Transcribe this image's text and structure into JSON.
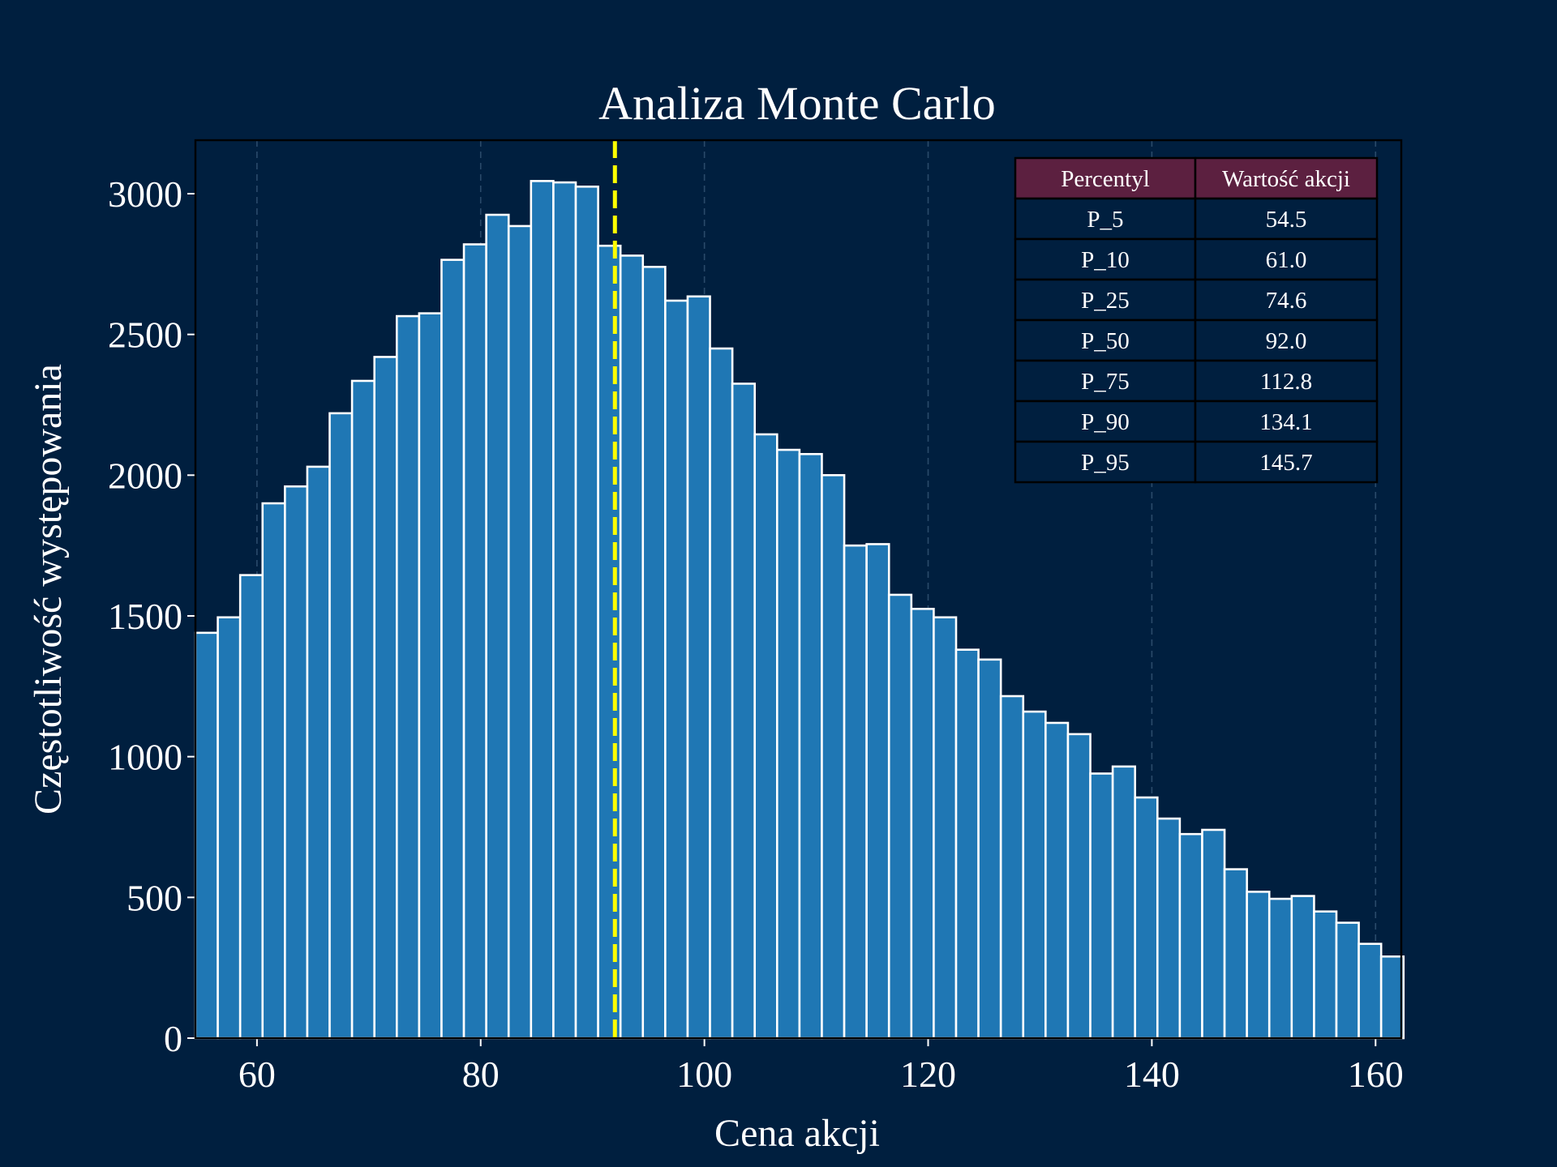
{
  "chart_data": {
    "type": "bar",
    "title": "Analiza Monte Carlo",
    "xlabel": "Cena akcji",
    "ylabel": "Częstotliwość występowania",
    "xlim": [
      54.5,
      162.3
    ],
    "ylim": [
      0,
      3190
    ],
    "x_ticks": [
      60,
      80,
      100,
      120,
      140,
      160
    ],
    "y_ticks": [
      0,
      500,
      1000,
      1500,
      2000,
      2500,
      3000
    ],
    "grid": "vertical dashed",
    "bin_start": 54.5,
    "bin_width": 2.0,
    "values": [
      1440,
      1495,
      1645,
      1900,
      1960,
      2030,
      2220,
      2335,
      2420,
      2565,
      2575,
      2765,
      2820,
      2925,
      2885,
      3045,
      3040,
      3025,
      2815,
      2780,
      2740,
      2620,
      2635,
      2450,
      2325,
      2145,
      2090,
      2075,
      2000,
      1750,
      1755,
      1575,
      1525,
      1495,
      1380,
      1345,
      1215,
      1160,
      1120,
      1080,
      940,
      965,
      855,
      780,
      725,
      740,
      600,
      520,
      495,
      505,
      450,
      410,
      335,
      290
    ],
    "median_line": {
      "x": 92.0,
      "color": "#ffff00"
    },
    "colors": {
      "bar": "#1f77b4",
      "bar_edge": "#ffffff",
      "background": "#001f3f",
      "table_header": "#5c2040"
    },
    "table": {
      "placement": "top-right",
      "headers": [
        "Percentyl",
        "Wartość akcji"
      ],
      "rows": [
        [
          "P_5",
          "54.5"
        ],
        [
          "P_10",
          "61.0"
        ],
        [
          "P_25",
          "74.6"
        ],
        [
          "P_50",
          "92.0"
        ],
        [
          "P_75",
          "112.8"
        ],
        [
          "P_90",
          "134.1"
        ],
        [
          "P_95",
          "145.7"
        ]
      ]
    }
  }
}
